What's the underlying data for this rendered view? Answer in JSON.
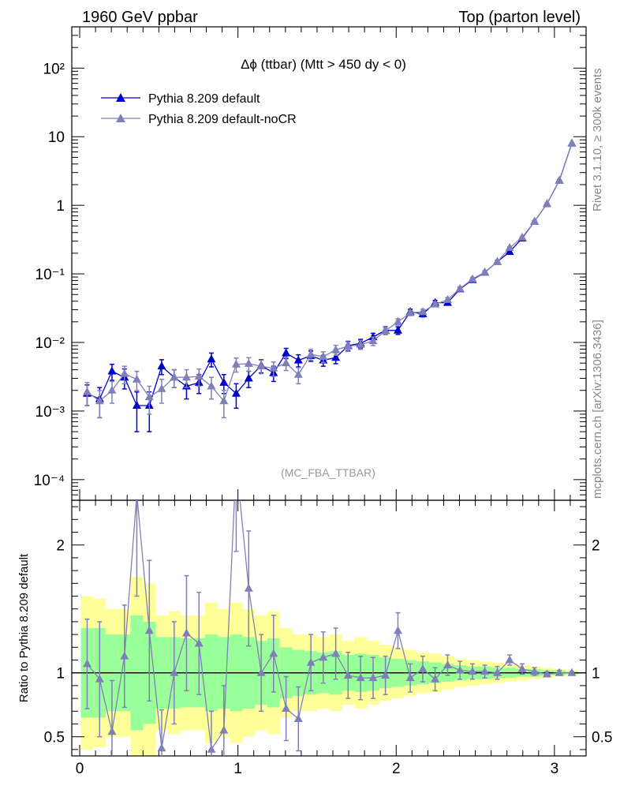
{
  "header": {
    "left": "1960 GeV ppbar",
    "right": "Top (parton level)"
  },
  "side_labels": {
    "rivet": "Rivet 3.1.10, ≥ 300k events",
    "mcplots": "mcplots.cern.ch [arXiv:1306.3436]"
  },
  "chart_data": {
    "type": "line",
    "title": "Δϕ (ttbar) (Mtt > 450 dy < 0)",
    "watermark": "(MC_FBA_TTBAR)",
    "log_y": true,
    "xlim": [
      -0.05,
      3.2
    ],
    "ylim": [
      5e-05,
      400
    ],
    "x_ticks": [
      "0",
      "1",
      "2",
      "3"
    ],
    "y_ticks": [
      "10⁻⁴",
      "10⁻³",
      "10⁻²",
      "10⁻¹",
      "1",
      "10",
      "10²"
    ],
    "legend_position": "top-left",
    "x": [
      0.047,
      0.126,
      0.204,
      0.283,
      0.361,
      0.44,
      0.518,
      0.597,
      0.675,
      0.754,
      0.832,
      0.911,
      0.989,
      1.068,
      1.147,
      1.225,
      1.304,
      1.382,
      1.461,
      1.539,
      1.618,
      1.696,
      1.775,
      1.854,
      1.932,
      2.011,
      2.089,
      2.168,
      2.246,
      2.325,
      2.403,
      2.482,
      2.56,
      2.639,
      2.717,
      2.796,
      2.874,
      2.953,
      3.031,
      3.11
    ],
    "series": [
      {
        "name": "Pythia 8.209 default",
        "color": "#0000cc",
        "values": [
          0.0018,
          0.0015,
          0.0038,
          0.0031,
          0.0012,
          0.0012,
          0.0045,
          0.0031,
          0.0023,
          0.0026,
          0.0057,
          0.0026,
          0.0018,
          0.003,
          0.0046,
          0.0036,
          0.007,
          0.0055,
          0.0064,
          0.0055,
          0.006,
          0.009,
          0.0097,
          0.012,
          0.015,
          0.015,
          0.028,
          0.026,
          0.038,
          0.038,
          0.06,
          0.082,
          0.105,
          0.15,
          0.21,
          0.33,
          0.58,
          1.05,
          2.3,
          8.0
        ],
        "yerr": [
          0.0006,
          0.0007,
          0.001,
          0.001,
          0.0007,
          0.0007,
          0.0011,
          0.0009,
          0.0008,
          0.0008,
          0.0013,
          0.0008,
          0.0007,
          0.0008,
          0.001,
          0.0009,
          0.0012,
          0.0011,
          0.0011,
          0.001,
          0.0011,
          0.0014,
          0.0014,
          0.0016,
          0.0019,
          0.0019,
          0.0025,
          0.0024,
          0.003,
          0.003,
          0.004,
          0.005,
          0.006,
          0.007,
          0.009,
          0.012,
          0.018,
          0.03,
          0.05,
          0.12
        ]
      },
      {
        "name": "Pythia 8.209 default-noCR",
        "color": "#8080b8",
        "values": [
          0.0019,
          0.0014,
          0.002,
          0.0035,
          0.0029,
          0.0016,
          0.0021,
          0.0031,
          0.0031,
          0.0032,
          0.0023,
          0.0014,
          0.0048,
          0.0049,
          0.0045,
          0.0042,
          0.005,
          0.0034,
          0.0067,
          0.0062,
          0.0078,
          0.0088,
          0.0093,
          0.0105,
          0.0148,
          0.02,
          0.027,
          0.028,
          0.036,
          0.042,
          0.061,
          0.084,
          0.106,
          0.149,
          0.24,
          0.34,
          0.58,
          1.05,
          2.3,
          8.0
        ],
        "yerr": [
          0.0007,
          0.0006,
          0.0007,
          0.001,
          0.0009,
          0.0007,
          0.0008,
          0.0009,
          0.0009,
          0.0009,
          0.0008,
          0.0006,
          0.0011,
          0.0011,
          0.001,
          0.001,
          0.0011,
          0.0009,
          0.0012,
          0.0011,
          0.0013,
          0.0014,
          0.0014,
          0.0015,
          0.0018,
          0.0021,
          0.0024,
          0.0025,
          0.0028,
          0.0031,
          0.0037,
          0.0045,
          0.005,
          0.006,
          0.008,
          0.01,
          0.016,
          0.026,
          0.045,
          0.1
        ]
      }
    ],
    "ratio": {
      "ylabel": "Ratio to Pythia 8.209 default",
      "ylim": [
        0.35,
        2.35
      ],
      "y_ticks": [
        "0.5",
        "1",
        "2"
      ],
      "values": [
        1.07,
        0.95,
        0.54,
        1.13,
        2.4,
        1.33,
        0.41,
        1.0,
        1.31,
        1.23,
        0.4,
        0.55,
        2.65,
        1.66,
        1.0,
        1.15,
        0.72,
        0.64,
        1.08,
        1.12,
        1.15,
        0.98,
        0.96,
        0.96,
        0.98,
        1.33,
        0.96,
        1.03,
        0.95,
        1.06,
        1.02,
        1.01,
        1.01,
        1.0,
        1.1,
        1.03,
        1.01,
        0.99,
        1.0,
        1.0
      ],
      "yerr": [
        0.35,
        0.45,
        0.4,
        0.4,
        0.8,
        0.55,
        0.3,
        0.4,
        0.45,
        0.4,
        0.3,
        0.35,
        0.7,
        0.45,
        0.3,
        0.3,
        0.25,
        0.25,
        0.22,
        0.2,
        0.2,
        0.18,
        0.17,
        0.16,
        0.15,
        0.14,
        0.11,
        0.1,
        0.09,
        0.08,
        0.07,
        0.06,
        0.05,
        0.05,
        0.04,
        0.04,
        0.03,
        0.02,
        0.02,
        0.01
      ],
      "band_yellow": [
        0.6,
        0.58,
        0.5,
        0.5,
        0.75,
        0.7,
        0.45,
        0.48,
        0.45,
        0.45,
        0.55,
        0.5,
        0.55,
        0.5,
        0.45,
        0.48,
        0.35,
        0.3,
        0.3,
        0.28,
        0.3,
        0.25,
        0.28,
        0.25,
        0.22,
        0.2,
        0.18,
        0.16,
        0.15,
        0.13,
        0.11,
        0.1,
        0.09,
        0.08,
        0.07,
        0.06,
        0.05,
        0.04,
        0.03,
        0.02
      ],
      "band_green": [
        0.35,
        0.35,
        0.3,
        0.3,
        0.45,
        0.4,
        0.28,
        0.28,
        0.27,
        0.27,
        0.3,
        0.28,
        0.3,
        0.28,
        0.25,
        0.27,
        0.2,
        0.18,
        0.17,
        0.16,
        0.17,
        0.14,
        0.15,
        0.14,
        0.12,
        0.11,
        0.1,
        0.09,
        0.08,
        0.07,
        0.06,
        0.05,
        0.05,
        0.04,
        0.04,
        0.03,
        0.03,
        0.02,
        0.02,
        0.01
      ]
    }
  }
}
